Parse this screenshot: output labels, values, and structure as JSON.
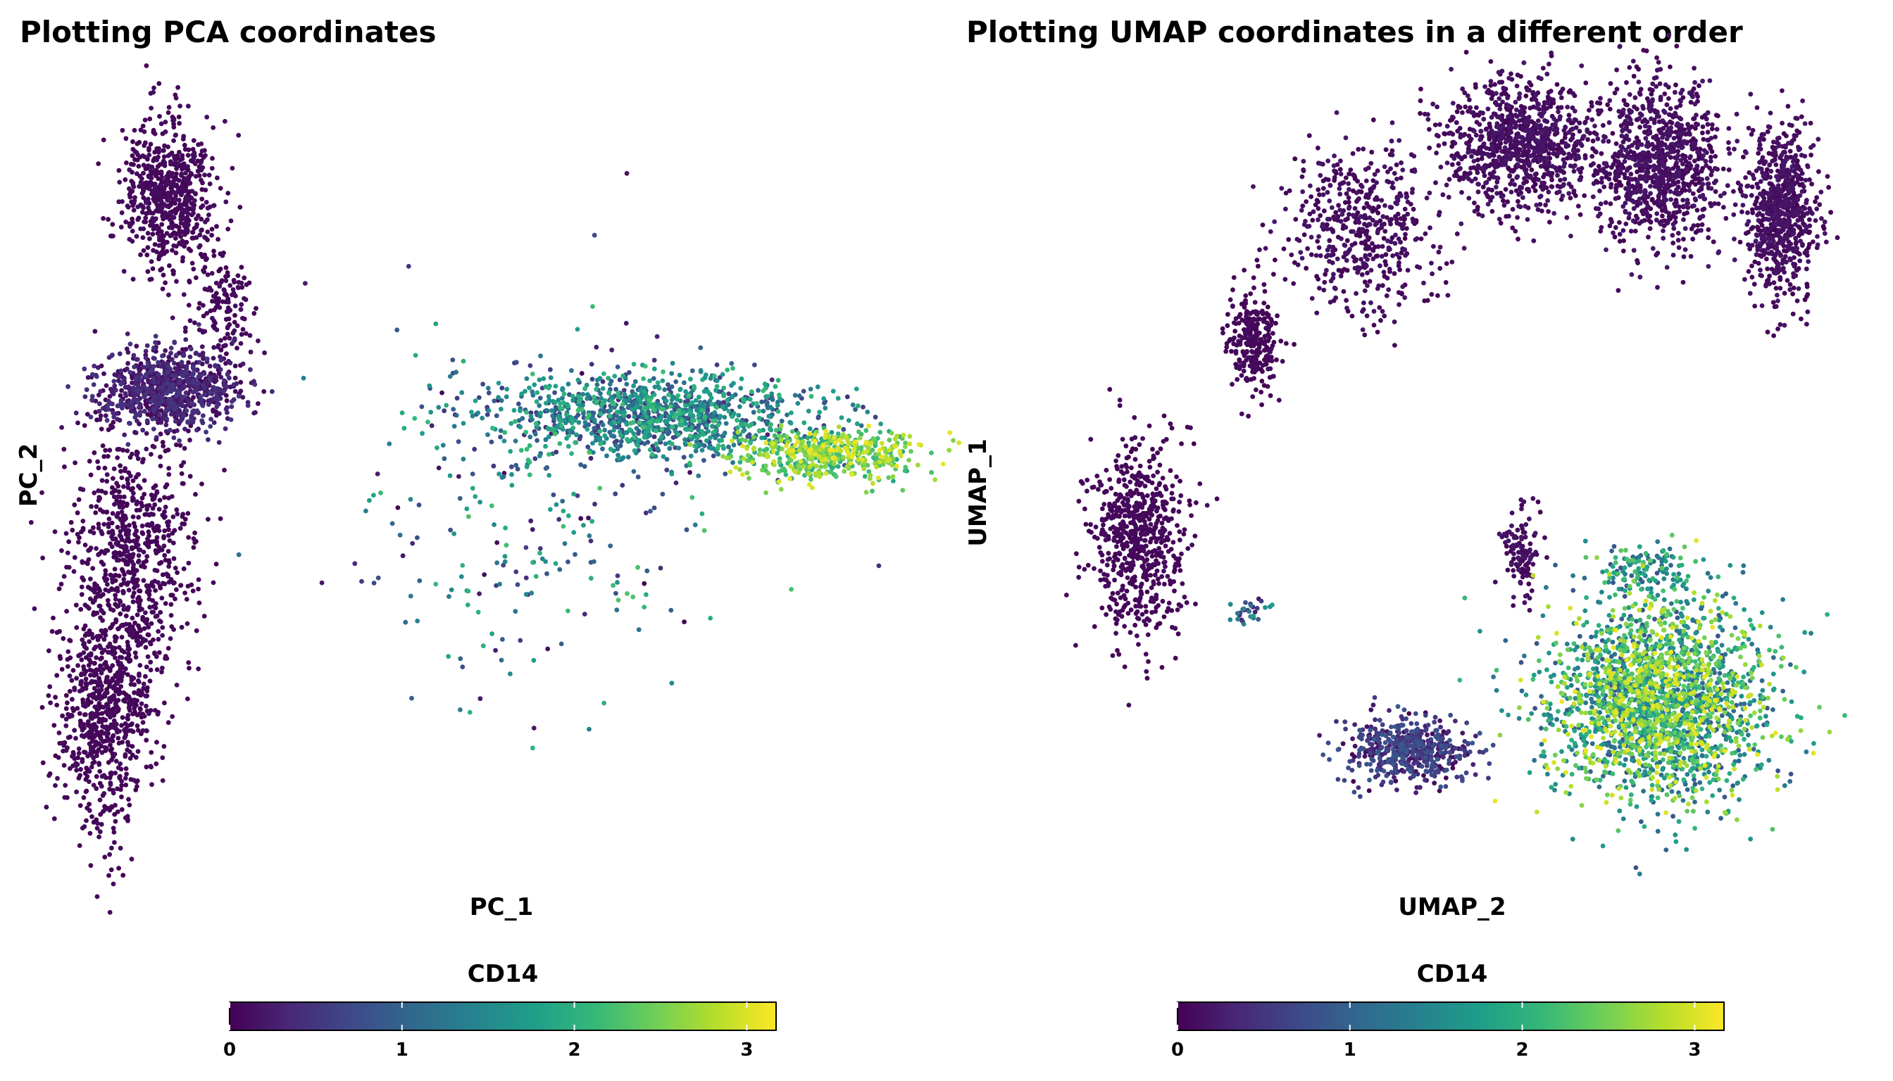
{
  "colors": {
    "viridis": [
      "#440154",
      "#482878",
      "#3e4989",
      "#31688e",
      "#26828e",
      "#1f9e89",
      "#35b779",
      "#6ece58",
      "#b5de2b",
      "#fde725"
    ],
    "background": "#ffffff"
  },
  "chart_data": [
    {
      "type": "scatter",
      "title": "Plotting PCA coordinates",
      "xlabel": "PC_1",
      "ylabel": "PC_2",
      "grid": false,
      "axes_visible": false,
      "color_by": "CD14",
      "colorbar": {
        "title": "CD14",
        "ticks": [
          "0",
          "1",
          "2",
          "3"
        ],
        "tick_values": [
          0,
          1,
          2,
          3
        ],
        "range": [
          0,
          3.17
        ],
        "placement": "bottom"
      },
      "clusters": [
        {
          "name": "top-left-blob",
          "cx": 0.14,
          "cy": 0.84,
          "sx": 0.025,
          "sy": 0.045,
          "n": 650,
          "cmin": 0,
          "cmax": 0.12
        },
        {
          "name": "top-left-tail",
          "cx": 0.2,
          "cy": 0.7,
          "sx": 0.02,
          "sy": 0.04,
          "n": 140,
          "cmin": 0,
          "cmax": 0.12
        },
        {
          "name": "mid-left-blob",
          "cx": 0.14,
          "cy": 0.6,
          "sx": 0.04,
          "sy": 0.025,
          "n": 800,
          "cmin": 0,
          "cmax": 0.5
        },
        {
          "name": "left-column",
          "cx": 0.1,
          "cy": 0.4,
          "sx": 0.035,
          "sy": 0.08,
          "n": 700,
          "cmin": 0,
          "cmax": 0.1
        },
        {
          "name": "left-column-lower",
          "cx": 0.07,
          "cy": 0.2,
          "sx": 0.025,
          "sy": 0.07,
          "n": 700,
          "cmin": 0,
          "cmax": 0.1
        },
        {
          "name": "right-band",
          "cx": 0.68,
          "cy": 0.57,
          "sx": 0.09,
          "sy": 0.025,
          "n": 1100,
          "cmin": 0.4,
          "cmax": 2.2
        },
        {
          "name": "right-band-tip",
          "cx": 0.87,
          "cy": 0.52,
          "sx": 0.05,
          "sy": 0.015,
          "n": 500,
          "cmin": 1.8,
          "cmax": 3.1
        },
        {
          "name": "scatter-drift",
          "cx": 0.55,
          "cy": 0.45,
          "sx": 0.1,
          "sy": 0.12,
          "n": 260,
          "cmin": 0,
          "cmax": 2.3
        }
      ]
    },
    {
      "type": "scatter",
      "title": "Plotting UMAP coordinates in a different order",
      "xlabel": "UMAP_2",
      "ylabel": "UMAP_1",
      "grid": false,
      "axes_visible": false,
      "color_by": "CD14",
      "colorbar": {
        "title": "CD14",
        "ticks": [
          "0",
          "1",
          "2",
          "3"
        ],
        "tick_values": [
          0,
          1,
          2,
          3
        ],
        "range": [
          0,
          3.17
        ],
        "placement": "bottom"
      },
      "clusters": [
        {
          "name": "top-arm-left",
          "cx": 0.07,
          "cy": 0.66,
          "sx": 0.02,
          "sy": 0.03,
          "n": 260,
          "cmin": 0,
          "cmax": 0.1
        },
        {
          "name": "top-arm-diagonal",
          "cx": 0.24,
          "cy": 0.8,
          "sx": 0.06,
          "sy": 0.05,
          "n": 500,
          "cmin": 0,
          "cmax": 0.2
        },
        {
          "name": "top-arm-middle",
          "cx": 0.5,
          "cy": 0.9,
          "sx": 0.06,
          "sy": 0.04,
          "n": 900,
          "cmin": 0,
          "cmax": 0.2
        },
        {
          "name": "top-arm-right",
          "cx": 0.72,
          "cy": 0.88,
          "sx": 0.05,
          "sy": 0.05,
          "n": 900,
          "cmin": 0,
          "cmax": 0.2
        },
        {
          "name": "top-far-right",
          "cx": 0.92,
          "cy": 0.82,
          "sx": 0.03,
          "sy": 0.05,
          "n": 700,
          "cmin": 0,
          "cmax": 0.2
        },
        {
          "name": "ring-left",
          "cx": -0.12,
          "cy": 0.42,
          "sx": 0.04,
          "sy": 0.06,
          "n": 650,
          "cmin": 0,
          "cmax": 0.1
        },
        {
          "name": "small-streak",
          "cx": 0.06,
          "cy": 0.33,
          "sx": 0.015,
          "sy": 0.008,
          "n": 30,
          "cmin": 0.2,
          "cmax": 1.8
        },
        {
          "name": "mid-small",
          "cx": 0.5,
          "cy": 0.4,
          "sx": 0.015,
          "sy": 0.03,
          "n": 110,
          "cmin": 0,
          "cmax": 0.2
        },
        {
          "name": "bottom-tail",
          "cx": 0.32,
          "cy": 0.16,
          "sx": 0.05,
          "sy": 0.02,
          "n": 500,
          "cmin": 0,
          "cmax": 0.9
        },
        {
          "name": "bottom-mono",
          "cx": 0.72,
          "cy": 0.22,
          "sx": 0.09,
          "sy": 0.06,
          "n": 2200,
          "cmin": 0.8,
          "cmax": 3.1
        },
        {
          "name": "bottom-mono-top",
          "cx": 0.7,
          "cy": 0.38,
          "sx": 0.04,
          "sy": 0.015,
          "n": 120,
          "cmin": 0.8,
          "cmax": 2.4
        }
      ]
    }
  ]
}
